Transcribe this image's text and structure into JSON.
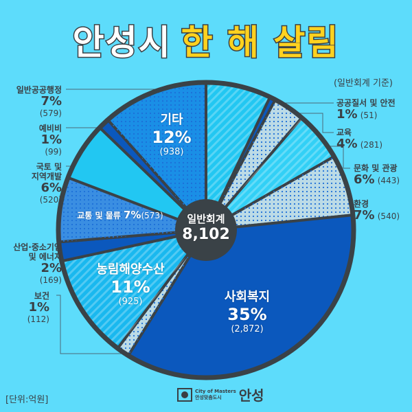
{
  "title": {
    "part1": "안성시",
    "part2": "한 해 살림"
  },
  "basis": "(일반회계 기준)",
  "unit": "[단위:억원]",
  "logo": {
    "small1": "City of Masters",
    "small2": "안성맞춤도시",
    "name": "안성"
  },
  "chart_data": {
    "type": "pie",
    "title": "안성시 한 해 살림",
    "center_label": "일반회계",
    "total": "8,102",
    "slices": [
      {
        "name": "일반공공행정",
        "pct": "7%",
        "value": 579,
        "value_label": "(579)",
        "color": "#22c7f2",
        "pattern": "stripe"
      },
      {
        "name": "공공질서 및 안전",
        "pct": "1%",
        "value": 51,
        "value_label": "(51)",
        "color": "#0b58bd",
        "pattern": "none"
      },
      {
        "name": "교육",
        "pct": "4%",
        "value": 281,
        "value_label": "(281)",
        "color": "#bcdbe6",
        "pattern": "dot"
      },
      {
        "name": "문화 및 관광",
        "pct": "6%",
        "value": 443,
        "value_label": "(443)",
        "color": "#32d0f6",
        "pattern": "stripe"
      },
      {
        "name": "환경",
        "pct": "7%",
        "value": 540,
        "value_label": "(540)",
        "color": "#bcdbe6",
        "pattern": "dot"
      },
      {
        "name": "사회복지",
        "pct": "35%",
        "value": 2872,
        "value_label": "(2,872)",
        "color": "#0b58bd",
        "pattern": "none"
      },
      {
        "name": "보건",
        "pct": "1%",
        "value": 112,
        "value_label": "(112)",
        "color": "#bcdbe6",
        "pattern": "dot"
      },
      {
        "name": "농림해양수산",
        "pct": "11%",
        "value": 925,
        "value_label": "(925)",
        "color": "#19b8ef",
        "pattern": "stripe"
      },
      {
        "name": "산업·중소기업 및 에너지",
        "pct": "2%",
        "value": 169,
        "value_label": "(169)",
        "color": "#0b58bd",
        "pattern": "none"
      },
      {
        "name": "교통 및 물류",
        "pct": "7%",
        "value": 573,
        "value_label": "(573)",
        "color": "#3a8ee2",
        "pattern": "dot"
      },
      {
        "name": "국토 및 지역개발",
        "pct": "6%",
        "value": 520,
        "value_label": "(520)",
        "color": "#22c7f2",
        "pattern": "none"
      },
      {
        "name": "예비비",
        "pct": "1%",
        "value": 99,
        "value_label": "(99)",
        "color": "#0b58bd",
        "pattern": "none"
      },
      {
        "name": "기타",
        "pct": "12%",
        "value": 938,
        "value_label": "(938)",
        "color": "#1a8fe6",
        "pattern": "dot"
      }
    ],
    "label_lines": {
      "국토": [
        "국토 및",
        "지역개발"
      ],
      "산업": [
        "산업·중소기업",
        "및 에너지"
      ]
    }
  }
}
